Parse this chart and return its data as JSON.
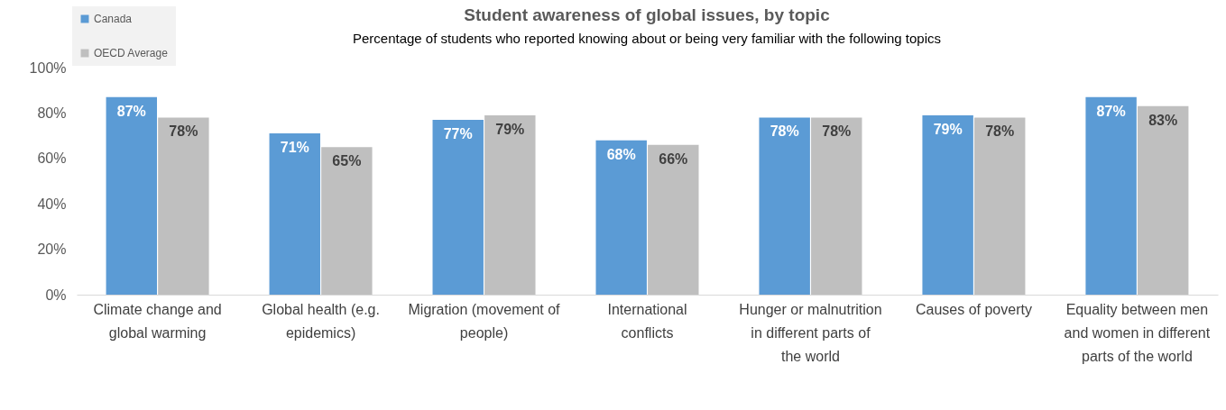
{
  "chart_data": {
    "type": "bar",
    "title": "Student awareness of global issues, by topic",
    "subtitle": "Percentage of students who reported knowing about or being very familiar with the following topics",
    "categories": [
      "Climate change and global warming",
      "Global health (e.g. epidemics)",
      "Migration (movement of people)",
      "International conflicts",
      "Hunger or malnutrition in different parts of the world",
      "Causes of poverty",
      "Equality between men and women in different parts of the world"
    ],
    "series": [
      {
        "name": "Canada",
        "color": "#5b9bd5",
        "values": [
          87,
          71,
          77,
          68,
          78,
          79,
          87
        ],
        "value_labels": [
          "87%",
          "71%",
          "77%",
          "68%",
          "78%",
          "79%",
          "87%"
        ]
      },
      {
        "name": "OECD Average",
        "color": "#bfbfbf",
        "values": [
          78,
          65,
          79,
          66,
          78,
          78,
          83
        ],
        "value_labels": [
          "78%",
          "65%",
          "79%",
          "66%",
          "78%",
          "78%",
          "83%"
        ]
      }
    ],
    "ylim": [
      0,
      100
    ],
    "yticks": [
      {
        "value": 0,
        "label": "0%"
      },
      {
        "value": 20,
        "label": "20%"
      },
      {
        "value": 40,
        "label": "40%"
      },
      {
        "value": 60,
        "label": "60%"
      },
      {
        "value": 80,
        "label": "80%"
      },
      {
        "value": 100,
        "label": "100%"
      }
    ],
    "legend": "top left"
  }
}
